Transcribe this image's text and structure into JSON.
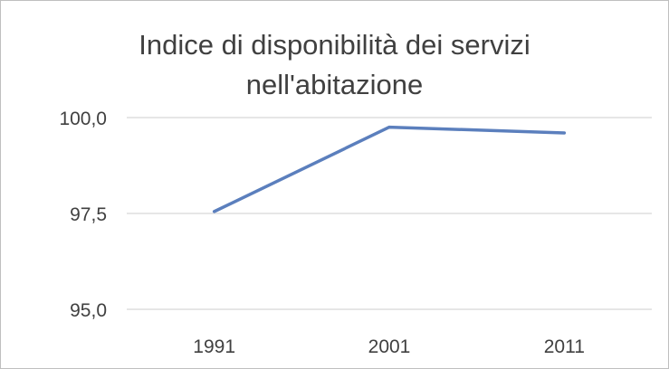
{
  "chart_data": {
    "type": "line",
    "title_lines": [
      "Indice di disponibilità dei servizi",
      "nell'abitazione"
    ],
    "categories": [
      "1991",
      "2001",
      "2011"
    ],
    "series": [
      {
        "values": [
          97.55,
          99.75,
          99.6
        ],
        "color": "#5b7fbd"
      }
    ],
    "yticks": [
      "100,0",
      "97,5",
      "95,0"
    ],
    "ytick_values": [
      100.0,
      97.5,
      95.0
    ],
    "ylim": [
      95.0,
      100.0
    ],
    "xlabel": "",
    "ylabel": "",
    "grid": true,
    "legend": "none",
    "gridline_color": "#e6e6e6",
    "text_color": "#404040"
  }
}
